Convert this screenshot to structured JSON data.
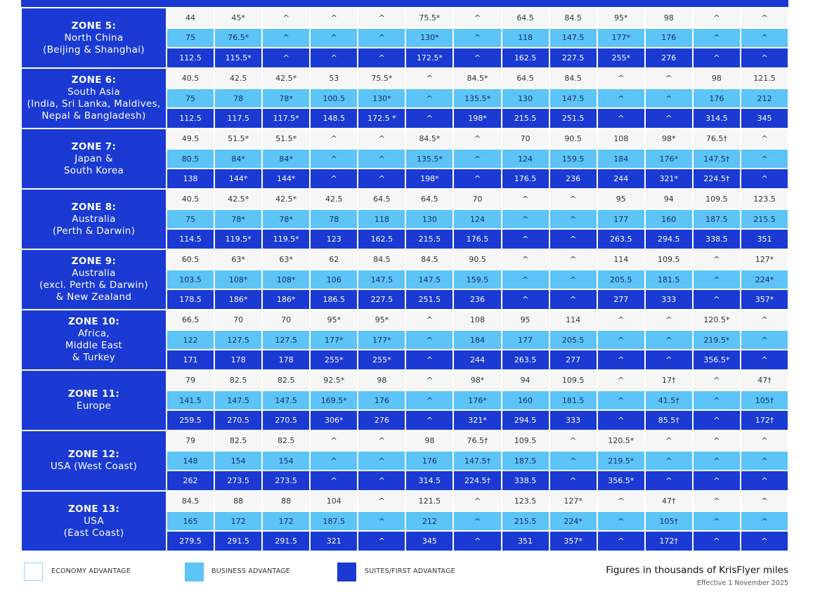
{
  "zones": [
    {
      "title": "ZONE 5:",
      "lines": [
        "North China",
        "(Beijing & Shanghai)"
      ],
      "rows": [
        [
          "44",
          "45*",
          "^",
          "^",
          "^",
          "75.5*",
          "^",
          "64.5",
          "84.5",
          "95*",
          "98",
          "^",
          "^"
        ],
        [
          "75",
          "76.5*",
          "^",
          "^",
          "^",
          "130*",
          "^",
          "118",
          "147.5",
          "177*",
          "176",
          "^",
          "^"
        ],
        [
          "112.5",
          "115.5*",
          "^",
          "^",
          "^",
          "172.5*",
          "^",
          "162.5",
          "227.5",
          "255*",
          "276",
          "^",
          "^"
        ]
      ]
    },
    {
      "title": "ZONE 6:",
      "lines": [
        "South Asia",
        "(India, Sri Lanka, Maldives,",
        "Nepal & Bangladesh)"
      ],
      "rows": [
        [
          "40.5",
          "42.5",
          "42.5*",
          "53",
          "75.5*",
          "^",
          "84.5*",
          "64.5",
          "84.5",
          "^",
          "^",
          "98",
          "121.5"
        ],
        [
          "75",
          "78",
          "78*",
          "100.5",
          "130*",
          "^",
          "135.5*",
          "130",
          "147.5",
          "^",
          "^",
          "176",
          "212"
        ],
        [
          "112.5",
          "117.5",
          "117.5*",
          "148.5",
          "172.5 *",
          "^",
          "198*",
          "215.5",
          "251.5",
          "^",
          "^",
          "314.5",
          "345"
        ]
      ]
    },
    {
      "title": "ZONE 7:",
      "lines": [
        "Japan &",
        "South Korea"
      ],
      "rows": [
        [
          "49.5",
          "51.5*",
          "51.5*",
          "^",
          "^",
          "84.5*",
          "^",
          "70",
          "90.5",
          "108",
          "98*",
          "76.5†",
          "^"
        ],
        [
          "80.5",
          "84*",
          "84*",
          "^",
          "^",
          "135.5*",
          "^",
          "124",
          "159.5",
          "184",
          "176*",
          "147.5†",
          "^"
        ],
        [
          "138",
          "144*",
          "144*",
          "^",
          "^",
          "198*",
          "^",
          "176.5",
          "236",
          "244",
          "321*",
          "224.5†",
          "^"
        ]
      ]
    },
    {
      "title": "ZONE 8:",
      "lines": [
        "Australia",
        "(Perth & Darwin)"
      ],
      "rows": [
        [
          "40.5",
          "42.5*",
          "42.5*",
          "42.5",
          "64.5",
          "64.5",
          "70",
          "^",
          "^",
          "95",
          "94",
          "109.5",
          "123.5"
        ],
        [
          "75",
          "78*",
          "78*",
          "78",
          "118",
          "130",
          "124",
          "^",
          "^",
          "177",
          "160",
          "187.5",
          "215.5"
        ],
        [
          "114.5",
          "119.5*",
          "119.5*",
          "123",
          "162.5",
          "215.5",
          "176.5",
          "^",
          "^",
          "263.5",
          "294.5",
          "338.5",
          "351"
        ]
      ]
    },
    {
      "title": "ZONE 9:",
      "lines": [
        "Australia",
        "(excl. Perth & Darwin)",
        "& New Zealand"
      ],
      "rows": [
        [
          "60.5",
          "63*",
          "63*",
          "62",
          "84.5",
          "84.5",
          "90.5",
          "^",
          "^",
          "114",
          "109.5",
          "^",
          "127*"
        ],
        [
          "103.5",
          "108*",
          "108*",
          "106",
          "147.5",
          "147.5",
          "159.5",
          "^",
          "^",
          "205.5",
          "181.5",
          "^",
          "224*"
        ],
        [
          "178.5",
          "186*",
          "186*",
          "186.5",
          "227.5",
          "251.5",
          "236",
          "^",
          "^",
          "277",
          "333",
          "^",
          "357*"
        ]
      ]
    },
    {
      "title": "ZONE 10:",
      "lines": [
        "Africa,",
        "Middle East",
        "& Turkey"
      ],
      "rows": [
        [
          "66.5",
          "70",
          "70",
          "95*",
          "95*",
          "^",
          "108",
          "95",
          "114",
          "^",
          "^",
          "120.5*",
          "^"
        ],
        [
          "122",
          "127.5",
          "127.5",
          "177*",
          "177*",
          "^",
          "184",
          "177",
          "205.5",
          "^",
          "^",
          "219.5*",
          "^"
        ],
        [
          "171",
          "178",
          "178",
          "255*",
          "255*",
          "^",
          "244",
          "263.5",
          "277",
          "^",
          "^",
          "356.5*",
          "^"
        ]
      ]
    },
    {
      "title": "ZONE 11:",
      "lines": [
        "Europe"
      ],
      "rows": [
        [
          "79",
          "82.5",
          "82.5",
          "92.5*",
          "98",
          "^",
          "98*",
          "94",
          "109.5",
          "^",
          "17†",
          "^",
          "47†"
        ],
        [
          "141.5",
          "147.5",
          "147.5",
          "169.5*",
          "176",
          "^",
          "176*",
          "160",
          "181.5",
          "^",
          "41.5†",
          "^",
          "105†"
        ],
        [
          "259.5",
          "270.5",
          "270.5",
          "306*",
          "276",
          "^",
          "321*",
          "294.5",
          "333",
          "^",
          "85.5†",
          "^",
          "172†"
        ]
      ]
    },
    {
      "title": "ZONE 12:",
      "lines": [
        "USA (West Coast)"
      ],
      "rows": [
        [
          "79",
          "82.5",
          "82.5",
          "^",
          "^",
          "98",
          "76.5†",
          "109.5",
          "^",
          "120.5*",
          "^",
          "^",
          "^"
        ],
        [
          "148",
          "154",
          "154",
          "^",
          "^",
          "176",
          "147.5†",
          "187.5",
          "^",
          "219.5*",
          "^",
          "^",
          "^"
        ],
        [
          "262",
          "273.5",
          "273.5",
          "^",
          "^",
          "314.5",
          "224.5†",
          "338.5",
          "^",
          "356.5*",
          "^",
          "^",
          "^"
        ]
      ]
    },
    {
      "title": "ZONE 13:",
      "lines": [
        "USA",
        "(East Coast)"
      ],
      "rows": [
        [
          "84.5",
          "88",
          "88",
          "104",
          "^",
          "121.5",
          "^",
          "123.5",
          "127*",
          "^",
          "47†",
          "^",
          "^"
        ],
        [
          "165",
          "172",
          "172",
          "187.5",
          "^",
          "212",
          "^",
          "215.5",
          "224*",
          "^",
          "105†",
          "^",
          "^"
        ],
        [
          "279.5",
          "291.5",
          "291.5",
          "321",
          "^",
          "345",
          "^",
          "351",
          "357*",
          "^",
          "172†",
          "^",
          "^"
        ]
      ]
    }
  ],
  "legend": [
    "ECONOMY ADVANTAGE",
    "BUSINESS ADVANTAGE",
    "SUITES/FIRST ADVANTAGE"
  ],
  "note": "Figures in thousands of KrisFlyer miles",
  "effective": "Effective 1 November 2025"
}
